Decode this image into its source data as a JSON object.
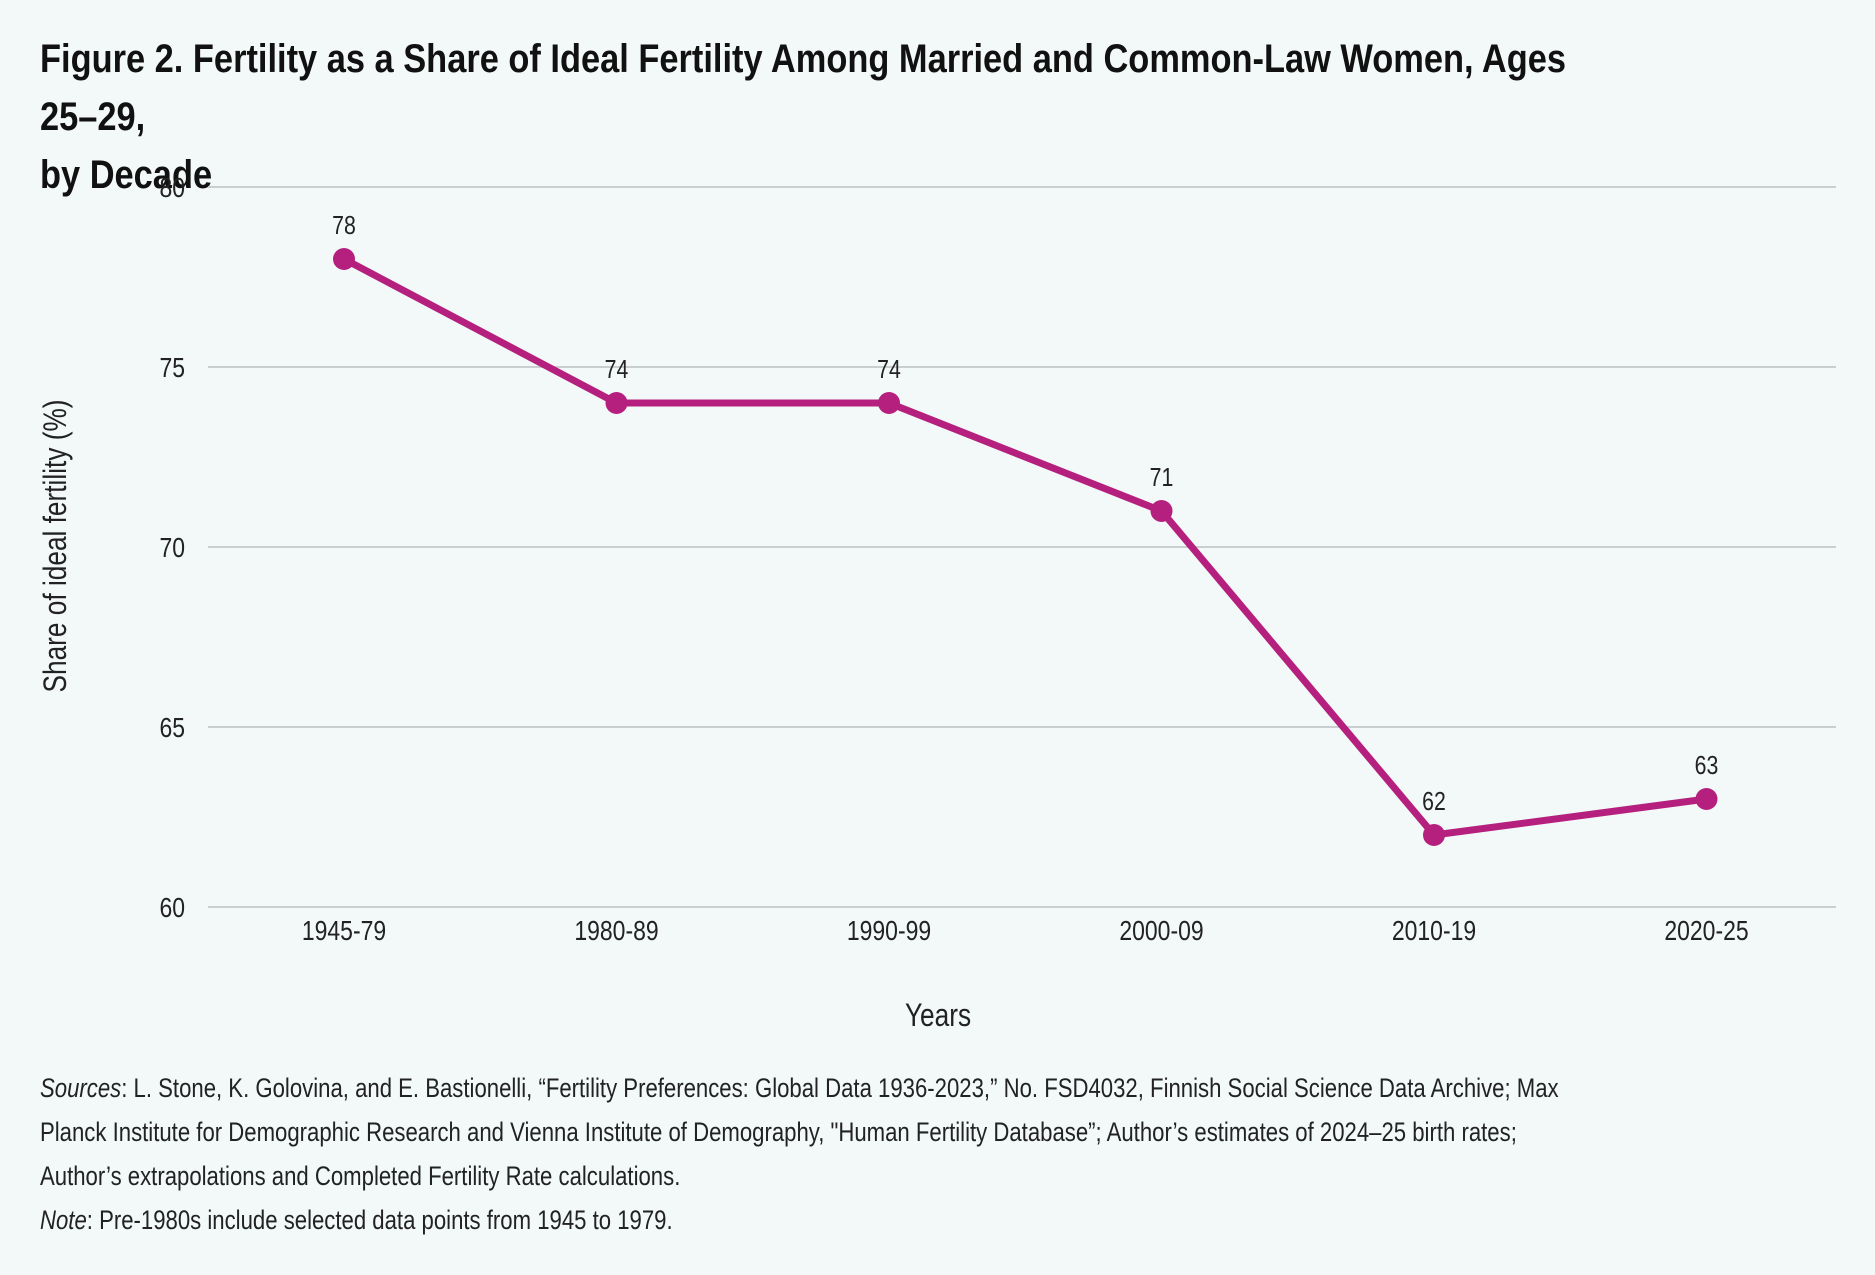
{
  "title_line1": "Figure 2. Fertility as a Share of Ideal Fertility Among Married and Common-Law Women, Ages 25–29,",
  "title_line2": "by Decade",
  "chart_data": {
    "type": "line",
    "title": "Figure 2. Fertility as a Share of Ideal Fertility Among Married and Common-Law Women, Ages 25–29, by Decade",
    "categories": [
      "1945-79",
      "1980-89",
      "1990-99",
      "2000-09",
      "2010-19",
      "2020-25"
    ],
    "series": [
      {
        "values": [
          78,
          74,
          74,
          71,
          62,
          63
        ]
      }
    ],
    "data_labels": [
      "78",
      "74",
      "74",
      "71",
      "62",
      "63"
    ],
    "xlabel": "Years",
    "ylabel": "Share of ideal fertility (%)",
    "ylim": [
      60,
      80
    ],
    "yticks": [
      60,
      65,
      70,
      75,
      80
    ],
    "grid": "horizontal",
    "line_color": "#b5207e",
    "gridline_color": "#c9cfd0"
  },
  "footnotes": {
    "sources_label": "Sources",
    "sources_text": ": L. Stone, K. Golovina, and E. Bastionelli, “Fertility Preferences: Global Data 1936-2023,” No. FSD4032, Finnish Social Science Data Archive; Max",
    "sources_line2": "Planck Institute for Demographic Research and Vienna Institute of Demography, \"Human Fertility Database”; Author’s estimates of 2024–25 birth rates;",
    "sources_line3": "Author’s extrapolations and Completed Fertility Rate calculations.",
    "note_label": "Note",
    "note_text": ": Pre-1980s include selected data points from 1945 to 1979."
  }
}
